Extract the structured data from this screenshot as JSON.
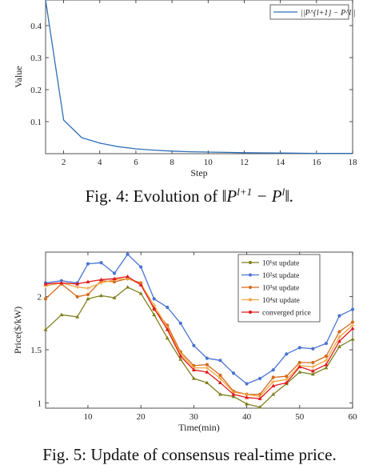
{
  "chart_data": [
    {
      "type": "line",
      "title": "",
      "xlabel": "Step",
      "ylabel": "Value",
      "xlim": [
        1,
        18
      ],
      "ylim": [
        0,
        0.48
      ],
      "xticks": [
        "2",
        "4",
        "6",
        "8",
        "10",
        "12",
        "14",
        "16",
        "18"
      ],
      "yticks": [
        "0.1",
        "0.2",
        "0.3",
        "0.4"
      ],
      "legend_position": "top-right",
      "series": [
        {
          "name": "||P^{l+1} - P^l||",
          "color": "#2e6fb7",
          "x": [
            1,
            2,
            3,
            4,
            5,
            6,
            7,
            8,
            9,
            10,
            11,
            12,
            13,
            14,
            15,
            16,
            17,
            18
          ],
          "y": [
            0.48,
            0.105,
            0.05,
            0.033,
            0.022,
            0.015,
            0.011,
            0.008,
            0.006,
            0.005,
            0.004,
            0.003,
            0.0025,
            0.002,
            0.0015,
            0.001,
            0.001,
            0.001
          ]
        }
      ]
    },
    {
      "type": "line",
      "title": "",
      "xlabel": "Time(min)",
      "ylabel": "Price($/kW)",
      "xlim": [
        2,
        60
      ],
      "ylim": [
        0.95,
        2.42
      ],
      "xticks": [
        "10",
        "20",
        "30",
        "40",
        "50",
        "60"
      ],
      "yticks": [
        "1",
        "1.5",
        "2"
      ],
      "legend_position": "top-right",
      "series": [
        {
          "name": "10^1st update",
          "color": "#7f7f1e",
          "x": [
            2,
            5,
            8,
            10,
            12.5,
            15,
            17.5,
            20,
            22.5,
            25,
            27.5,
            30,
            32.5,
            35,
            37.5,
            40,
            42.5,
            45,
            47.5,
            50,
            52.5,
            55,
            57.5,
            60
          ],
          "y": [
            1.69,
            1.83,
            1.81,
            1.98,
            2.01,
            1.99,
            2.09,
            2.03,
            1.83,
            1.61,
            1.41,
            1.23,
            1.19,
            1.08,
            1.06,
            0.99,
            0.96,
            1.08,
            1.18,
            1.29,
            1.27,
            1.33,
            1.53,
            1.6
          ]
        },
        {
          "name": "10^2st update",
          "color": "#4a73d3",
          "x": [
            2,
            5,
            8,
            10,
            12.5,
            15,
            17.5,
            20,
            22.5,
            25,
            27.5,
            30,
            32.5,
            35,
            37.5,
            40,
            42.5,
            45,
            47.5,
            50,
            52.5,
            55,
            57.5,
            60
          ],
          "y": [
            2.13,
            2.15,
            2.13,
            2.31,
            2.32,
            2.22,
            2.4,
            2.28,
            1.98,
            1.9,
            1.75,
            1.54,
            1.42,
            1.4,
            1.28,
            1.18,
            1.23,
            1.31,
            1.46,
            1.52,
            1.51,
            1.56,
            1.82,
            1.88
          ]
        },
        {
          "name": "10^3st update",
          "color": "#d46a1c",
          "x": [
            2,
            5,
            8,
            10,
            12.5,
            15,
            17.5,
            20,
            22.5,
            25,
            27.5,
            30,
            32.5,
            35,
            37.5,
            40,
            42.5,
            45,
            47.5,
            50,
            52.5,
            55,
            57.5,
            60
          ],
          "y": [
            1.98,
            2.12,
            2.0,
            2.02,
            2.15,
            2.14,
            2.17,
            2.13,
            1.88,
            1.73,
            1.48,
            1.35,
            1.36,
            1.26,
            1.11,
            1.08,
            1.08,
            1.24,
            1.25,
            1.38,
            1.38,
            1.44,
            1.67,
            1.76
          ]
        },
        {
          "name": "10^4st update",
          "color": "#f2a541",
          "x": [
            2,
            5,
            8,
            10,
            12.5,
            15,
            17.5,
            20,
            22.5,
            25,
            27.5,
            30,
            32.5,
            35,
            37.5,
            40,
            42.5,
            45,
            47.5,
            50,
            52.5,
            55,
            57.5,
            60
          ],
          "y": [
            2.1,
            2.13,
            2.09,
            2.08,
            2.13,
            2.16,
            2.17,
            2.12,
            1.92,
            1.71,
            1.46,
            1.33,
            1.33,
            1.23,
            1.1,
            1.08,
            1.06,
            1.2,
            1.22,
            1.35,
            1.34,
            1.4,
            1.62,
            1.73
          ]
        },
        {
          "name": "converged price",
          "color": "#e0181b",
          "x": [
            2,
            5,
            8,
            10,
            12.5,
            15,
            17.5,
            20,
            22.5,
            25,
            27.5,
            30,
            32.5,
            35,
            37.5,
            40,
            42.5,
            45,
            47.5,
            50,
            52.5,
            55,
            57.5,
            60
          ],
          "y": [
            2.12,
            2.13,
            2.12,
            2.14,
            2.16,
            2.17,
            2.19,
            2.11,
            1.89,
            1.69,
            1.44,
            1.31,
            1.29,
            1.19,
            1.08,
            1.05,
            1.04,
            1.16,
            1.19,
            1.34,
            1.3,
            1.36,
            1.58,
            1.7
          ]
        }
      ]
    }
  ],
  "legend_labels": [
    [
      "||P^{l+1} − P^l||"
    ],
    [
      "10¹st update",
      "10²st update",
      "10³st update",
      "10⁴st update",
      "converged price"
    ]
  ],
  "captions": {
    "fig4_prefix": "Fig. 4: Evolution of ",
    "fig4_norm": "‖P",
    "fig4_sup1": "l+1",
    "fig4_mid": " − P",
    "fig4_sup2": "l",
    "fig4_end": "‖.",
    "fig5": "Fig. 5: Update of consensus real-time price."
  }
}
